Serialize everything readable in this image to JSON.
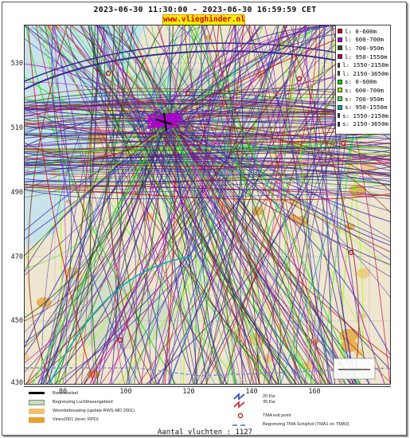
{
  "header": {
    "time_range": "2023-06-30 11:30:00 - 2023-06-30 16:59:59 CET",
    "site": "www.vlieghinder.nl"
  },
  "axes": {
    "y_ticks": [
      "530",
      "510",
      "490",
      "470",
      "450",
      "430"
    ],
    "x_ticks": [
      "80",
      "100",
      "120",
      "140",
      "160"
    ]
  },
  "legend": {
    "items": [
      {
        "label": "l: 0-600m",
        "color": "#cc0000"
      },
      {
        "label": "l: 600-700m",
        "color": "#b000d0"
      },
      {
        "label": "l: 700-950m",
        "color": "#1a5c00"
      },
      {
        "label": "l: 950-1550m",
        "color": "#c00060"
      },
      {
        "label": "l: 1550-2150m",
        "color": "#a02020"
      },
      {
        "label": "l: 2150-3650m",
        "color": "#8b2a1a"
      },
      {
        "label": "s: 0-600m",
        "color": "#00e000"
      },
      {
        "label": "s: 600-700m",
        "color": "#99ff00"
      },
      {
        "label": "s: 700-950m",
        "color": "#44ee44"
      },
      {
        "label": "s: 950-1550m",
        "color": "#00b0b0"
      },
      {
        "label": "s: 1550-2150m",
        "color": "#3030c0"
      },
      {
        "label": "s: 2150-3650m",
        "color": "#3a2a90"
      }
    ]
  },
  "map_legend": {
    "runway": "Banenstelsel",
    "airport_boundary": "Begrenzing Luchthavengebied",
    "housing": "Woonbebouwing (update RWS-MD 2001)",
    "vinex": "Vinex2001 (bron: RPD)",
    "wind_a": "20 Kw",
    "wind_b": "35 Kw",
    "tma_exit": "TMA exit point",
    "tma_boundary": "Begrenzing TMA Schiphol  (TMA1 en TMA3)"
  },
  "colors": {
    "land": "#efe6cf",
    "green_area": "#c9dcc0",
    "housing": "#f0c070",
    "vinex": "#e8a030",
    "tma_line": "#7090d0"
  },
  "footer": {
    "count": "Aantal vluchten : 1127"
  }
}
